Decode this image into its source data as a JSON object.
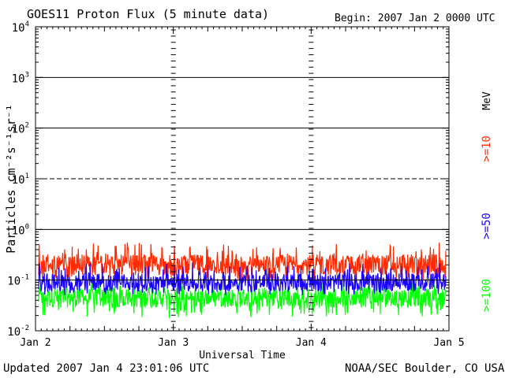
{
  "header": {
    "title": "GOES11 Proton Flux (5 minute data)",
    "begin": "Begin: 2007 Jan 2 0000 UTC"
  },
  "footer": {
    "updated": "Updated 2007 Jan  4 23:01:06 UTC",
    "credit": "NOAA/SEC Boulder, CO USA"
  },
  "colors": {
    "ge10": "#ff2a00",
    "ge50": "#1a00ff",
    "ge100": "#00ff00",
    "axis": "#000000"
  },
  "chart_data": {
    "type": "line",
    "xlabel": "Universal Time",
    "ylabel": "Particles cm⁻²s⁻¹sr⁻¹",
    "yscale": "log",
    "ylim": [
      0.01,
      10000
    ],
    "xlim": [
      "2007-01-02 00:00",
      "2007-01-05 00:00"
    ],
    "x_tick_labels": [
      "Jan 2",
      "Jan 3",
      "Jan 4",
      "Jan 5"
    ],
    "y_tick_labels": [
      {
        "base": "10",
        "exp": "-2"
      },
      {
        "base": "10",
        "exp": "-1"
      },
      {
        "base": "10",
        "exp": "0"
      },
      {
        "base": "10",
        "exp": "1"
      },
      {
        "base": "10",
        "exp": "2"
      },
      {
        "base": "10",
        "exp": "3"
      },
      {
        "base": "10",
        "exp": "4"
      }
    ],
    "reference_lines": [
      {
        "value": 0.1,
        "style": "solid"
      },
      {
        "value": 1,
        "style": "solid"
      },
      {
        "value": 10,
        "style": "dashed"
      },
      {
        "value": 100,
        "style": "solid"
      },
      {
        "value": 1000,
        "style": "solid"
      }
    ],
    "legend_unit": "MeV",
    "series": [
      {
        "name": ">=10",
        "color": "#ff2a00",
        "typical": 0.2,
        "min": 0.1,
        "max": 0.55
      },
      {
        "name": ">=50",
        "color": "#1a00ff",
        "typical": 0.09,
        "min": 0.05,
        "max": 0.22
      },
      {
        "name": ">=100",
        "color": "#00ff00",
        "typical": 0.045,
        "min": 0.018,
        "max": 0.09
      }
    ],
    "samples_per_day": 288
  }
}
